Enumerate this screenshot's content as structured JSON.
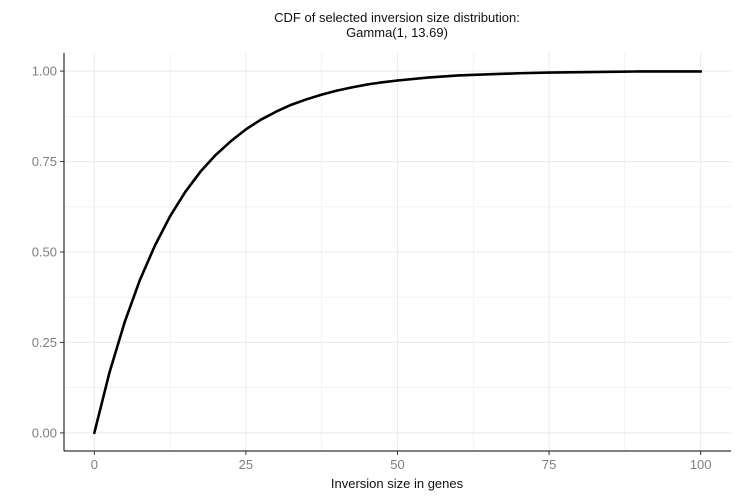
{
  "chart_data": {
    "type": "line",
    "title": [
      "CDF of selected inversion size distribution:",
      "Gamma(1, 13.69)"
    ],
    "xlabel": "Inversion size in genes",
    "ylabel": "",
    "xlim": [
      -5,
      105
    ],
    "ylim": [
      -0.05,
      1.05
    ],
    "x_ticks": [
      0,
      25,
      50,
      75,
      100
    ],
    "x_tick_labels": [
      "0",
      "25",
      "50",
      "75",
      "100"
    ],
    "y_ticks": [
      0,
      0.25,
      0.5,
      0.75,
      1
    ],
    "y_tick_labels": [
      "0.00",
      "0.25",
      "0.50",
      "0.75",
      "1.00"
    ],
    "grid": true,
    "legend": "none",
    "colors": {
      "line": "#000000",
      "grid": "#ebebeb",
      "axis": "#000000",
      "tick_text": "#7f7f7f"
    },
    "series": [
      {
        "x": [
          0,
          2.5,
          5,
          7.5,
          10,
          12.5,
          15,
          17.5,
          20,
          22.5,
          25,
          27.5,
          30,
          32.5,
          35,
          37.5,
          40,
          42.5,
          45,
          47.5,
          50,
          55,
          60,
          65,
          70,
          75,
          80,
          85,
          90,
          95,
          100
        ],
        "y": [
          0.0,
          0.167,
          0.306,
          0.422,
          0.518,
          0.599,
          0.666,
          0.722,
          0.768,
          0.806,
          0.839,
          0.866,
          0.888,
          0.907,
          0.922,
          0.935,
          0.946,
          0.955,
          0.963,
          0.969,
          0.974,
          0.982,
          0.988,
          0.991,
          0.994,
          0.996,
          0.997,
          0.998,
          0.999,
          0.999,
          0.999
        ]
      }
    ]
  }
}
